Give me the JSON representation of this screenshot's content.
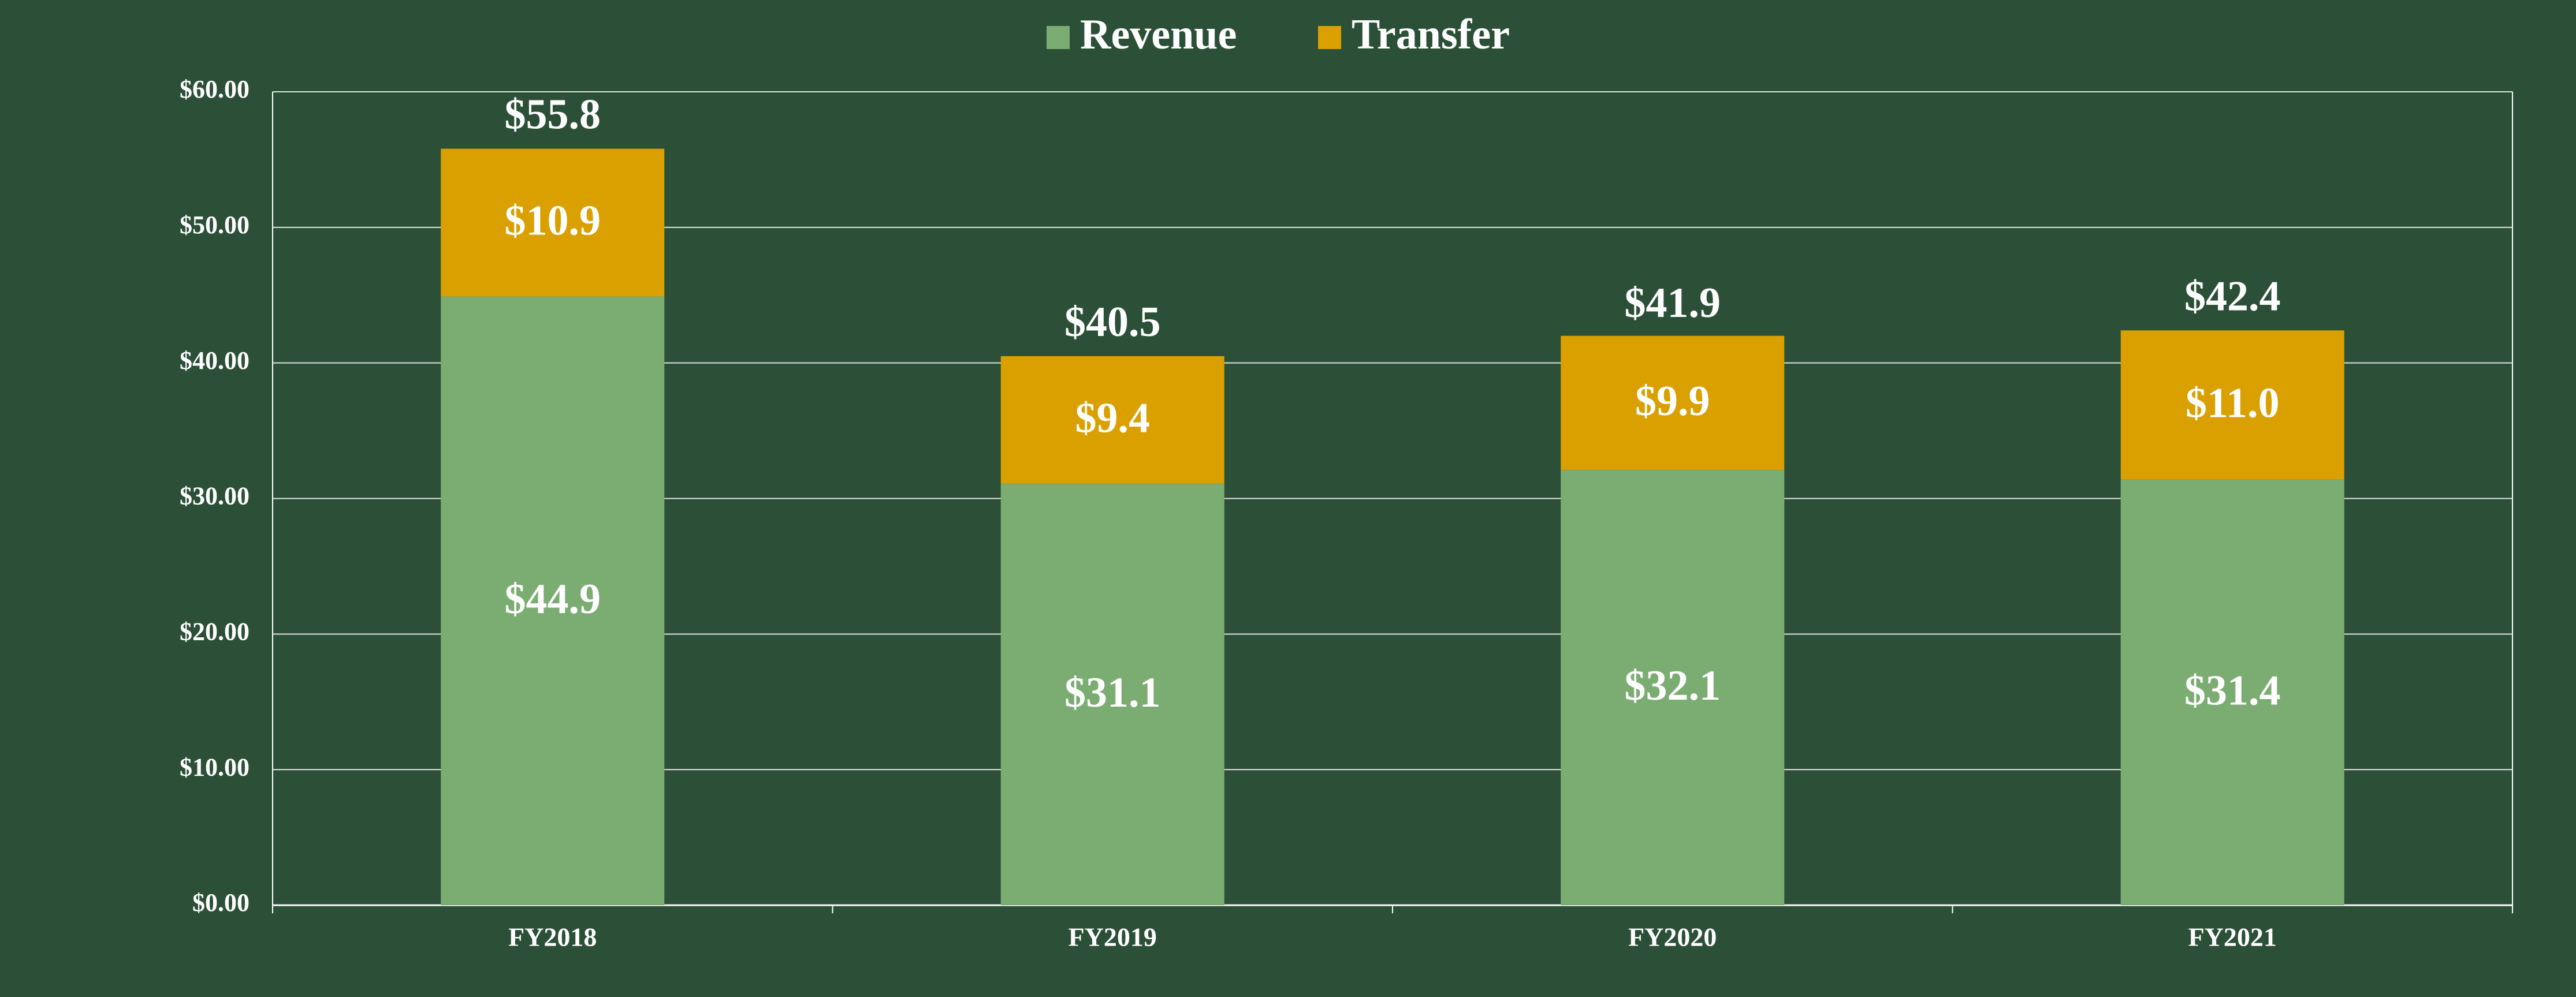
{
  "chart_data": {
    "type": "stacked_bar",
    "categories": [
      "FY2018",
      "FY2019",
      "FY2020",
      "FY2021"
    ],
    "series": [
      {
        "name": "Revenue",
        "color": "#7bad73",
        "values": [
          44.9,
          31.1,
          32.1,
          31.4
        ],
        "value_labels": [
          "$44.9",
          "$31.1",
          "$32.1",
          "$31.4"
        ]
      },
      {
        "name": "Transfer",
        "color": "#d9a000",
        "values": [
          10.9,
          9.4,
          9.9,
          11.0
        ],
        "value_labels": [
          "$10.9",
          "$9.4",
          "$9.9",
          "$11.0"
        ]
      }
    ],
    "totals": [
      55.8,
      40.5,
      41.9,
      42.4
    ],
    "total_labels": [
      "$55.8",
      "$40.5",
      "$41.9",
      "$42.4"
    ],
    "ylim": [
      0,
      60
    ],
    "yticks": [
      {
        "value": 0,
        "label": "$0.00"
      },
      {
        "value": 10,
        "label": "$10.00"
      },
      {
        "value": 20,
        "label": "$20.00"
      },
      {
        "value": 30,
        "label": "$30.00"
      },
      {
        "value": 40,
        "label": "$40.00"
      },
      {
        "value": 50,
        "label": "$50.00"
      },
      {
        "value": 60,
        "label": "$60.00"
      }
    ],
    "grid": true,
    "legend": "top"
  }
}
